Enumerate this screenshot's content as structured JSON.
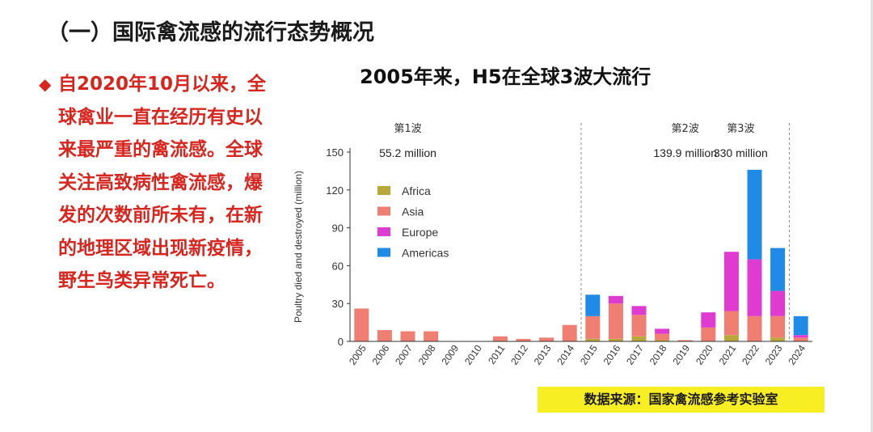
{
  "slide": {
    "title": "（一）国际禽流感的流行态势概况",
    "bullet_marker": "◆",
    "bullet_text": "自2020年10月以来，全球禽业一直在经历有史以来最严重的禽流感。全球关注高致病性禽流感，爆发的次数前所未有，在新的地理区域出现新疫情，野生鸟类异常死亡。",
    "source": "数据来源：国家禽流感参考实验室"
  },
  "colors": {
    "Africa": "#b8a93a",
    "Asia": "#f07f73",
    "Europe": "#e03bd1",
    "Americas": "#1f8be6"
  },
  "chart_data": {
    "type": "bar",
    "stacked": true,
    "title": "2005年来，H5在全球3波大流行",
    "ylabel": "Poultry died and destroyed (million)",
    "xlabel": "",
    "ylim": [
      0,
      150
    ],
    "yticks": [
      0,
      30,
      60,
      90,
      120,
      150
    ],
    "categories": [
      "2005",
      "2006",
      "2007",
      "2008",
      "2009",
      "2010",
      "2011",
      "2012",
      "2013",
      "2014",
      "2015",
      "2016",
      "2017",
      "2018",
      "2019",
      "2020",
      "2021",
      "2022",
      "2023",
      "2024"
    ],
    "series": [
      {
        "name": "Africa",
        "values": [
          0,
          0,
          0,
          0,
          0,
          0,
          0,
          0,
          0,
          0,
          2,
          2,
          4,
          1,
          0,
          0,
          5,
          0,
          3,
          0
        ]
      },
      {
        "name": "Asia",
        "values": [
          26,
          9,
          8,
          8,
          0,
          0,
          4,
          2,
          3,
          13,
          18,
          28,
          17,
          5,
          1,
          11,
          19,
          20,
          17,
          3
        ]
      },
      {
        "name": "Europe",
        "values": [
          0,
          0,
          0,
          0,
          0,
          0,
          0,
          0,
          0,
          0,
          0,
          6,
          7,
          4,
          0,
          12,
          47,
          45,
          20,
          2
        ]
      },
      {
        "name": "Americas",
        "values": [
          0,
          0,
          0,
          0,
          0,
          0,
          0,
          0,
          0,
          0,
          17,
          0,
          0,
          0,
          0,
          0,
          0,
          71,
          34,
          15
        ]
      }
    ],
    "waves": [
      {
        "label": "第1波",
        "total": "55.2 million"
      },
      {
        "label": "第2波",
        "total": "139.9 million"
      },
      {
        "label": "第3波",
        "total": "330 million"
      }
    ],
    "legend_position": "top-left"
  }
}
